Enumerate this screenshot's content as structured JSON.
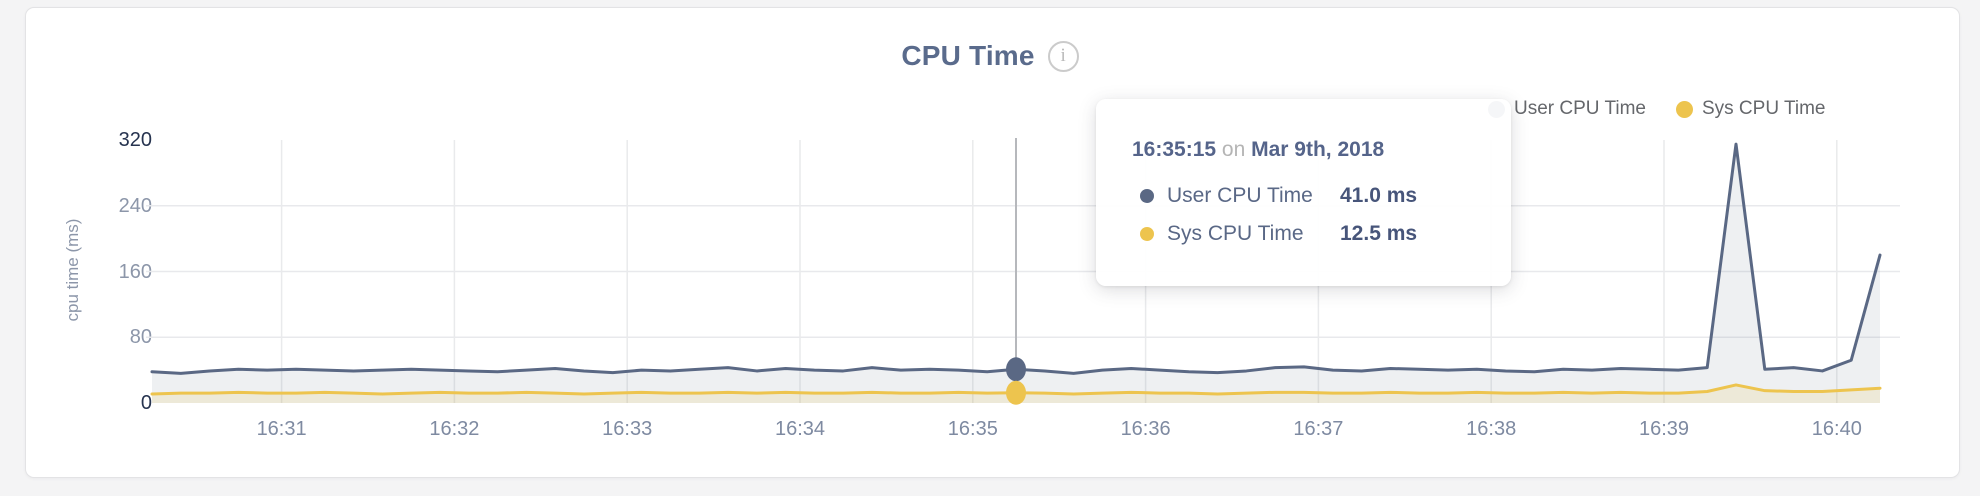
{
  "header": {
    "title": "CPU Time",
    "info_icon": "i"
  },
  "legend": {
    "position": "top-right",
    "items": [
      {
        "label": "User CPU Time",
        "color": "#5a6884"
      },
      {
        "label": "Sys CPU Time",
        "color": "#edc44e"
      }
    ]
  },
  "tooltip": {
    "time": "16:35:15",
    "conjunction": "on",
    "date": "Mar 9th, 2018",
    "rows": [
      {
        "label": "User CPU Time",
        "value": "41.0 ms",
        "color": "#5a6884"
      },
      {
        "label": "Sys CPU Time",
        "value": "12.5 ms",
        "color": "#edc44e"
      }
    ]
  },
  "chart_data": {
    "type": "area",
    "title": "CPU Time",
    "xlabel": "",
    "ylabel": "cpu time (ms)",
    "ylim": [
      0,
      320
    ],
    "grid": true,
    "legend_position": "top-right",
    "x_range": [
      "16:30:15",
      "16:40:15"
    ],
    "x_tick_labels": [
      "16:31",
      "16:32",
      "16:33",
      "16:34",
      "16:35",
      "16:36",
      "16:37",
      "16:38",
      "16:39",
      "16:40"
    ],
    "y_ticks": [
      {
        "label": "320",
        "value": 320,
        "strong": true,
        "gridline": false
      },
      {
        "label": "240",
        "value": 240,
        "strong": false,
        "gridline": true
      },
      {
        "label": "160",
        "value": 160,
        "strong": false,
        "gridline": true
      },
      {
        "label": "80",
        "value": 80,
        "strong": false,
        "gridline": true
      },
      {
        "label": "0",
        "value": 0,
        "strong": true,
        "gridline": false
      }
    ],
    "hover_index": 30,
    "x_times": [
      "16:30:15",
      "16:30:25",
      "16:30:35",
      "16:30:45",
      "16:30:55",
      "16:31:05",
      "16:31:15",
      "16:31:25",
      "16:31:35",
      "16:31:45",
      "16:31:55",
      "16:32:05",
      "16:32:15",
      "16:32:25",
      "16:32:35",
      "16:32:45",
      "16:32:55",
      "16:33:05",
      "16:33:15",
      "16:33:25",
      "16:33:35",
      "16:33:45",
      "16:33:55",
      "16:34:05",
      "16:34:15",
      "16:34:25",
      "16:34:35",
      "16:34:45",
      "16:34:55",
      "16:35:05",
      "16:35:15",
      "16:35:25",
      "16:35:35",
      "16:35:45",
      "16:35:55",
      "16:36:05",
      "16:36:15",
      "16:36:25",
      "16:36:35",
      "16:36:45",
      "16:36:55",
      "16:37:05",
      "16:37:15",
      "16:37:25",
      "16:37:35",
      "16:37:45",
      "16:37:55",
      "16:38:05",
      "16:38:15",
      "16:38:25",
      "16:38:35",
      "16:38:45",
      "16:38:55",
      "16:39:05",
      "16:39:15",
      "16:39:25",
      "16:39:35",
      "16:39:45",
      "16:39:55",
      "16:40:05",
      "16:40:15"
    ],
    "series": [
      {
        "name": "User CPU Time",
        "color": "#5a6884",
        "fill": "rgba(90,104,132,0.10)",
        "unit": "ms",
        "values": [
          38,
          36,
          39,
          41,
          40,
          41,
          40,
          39,
          40,
          41,
          40,
          39,
          38,
          40,
          42,
          39,
          37,
          40,
          39,
          41,
          43,
          39,
          42,
          40,
          39,
          43,
          40,
          41,
          40,
          38,
          41,
          39,
          36,
          40,
          42,
          40,
          38,
          37,
          39,
          43,
          44,
          40,
          39,
          42,
          41,
          40,
          41,
          39,
          38,
          41,
          40,
          42,
          41,
          40,
          43,
          315,
          41,
          43,
          39,
          52,
          180
        ]
      },
      {
        "name": "Sys CPU Time",
        "color": "#edc44e",
        "fill": "rgba(238,196,78,0.16)",
        "unit": "ms",
        "values": [
          11,
          12,
          12,
          13,
          12,
          12,
          13,
          12,
          11,
          12,
          13,
          12,
          12,
          13,
          12,
          11,
          12,
          13,
          12,
          12,
          13,
          12,
          13,
          12,
          12,
          13,
          12,
          12,
          13,
          12,
          12.5,
          12,
          11,
          12,
          13,
          12,
          12,
          11,
          12,
          13,
          13,
          12,
          12,
          13,
          12,
          12,
          13,
          12,
          12,
          13,
          12,
          13,
          12,
          12,
          14,
          22,
          15,
          14,
          14,
          16,
          18
        ]
      }
    ]
  }
}
